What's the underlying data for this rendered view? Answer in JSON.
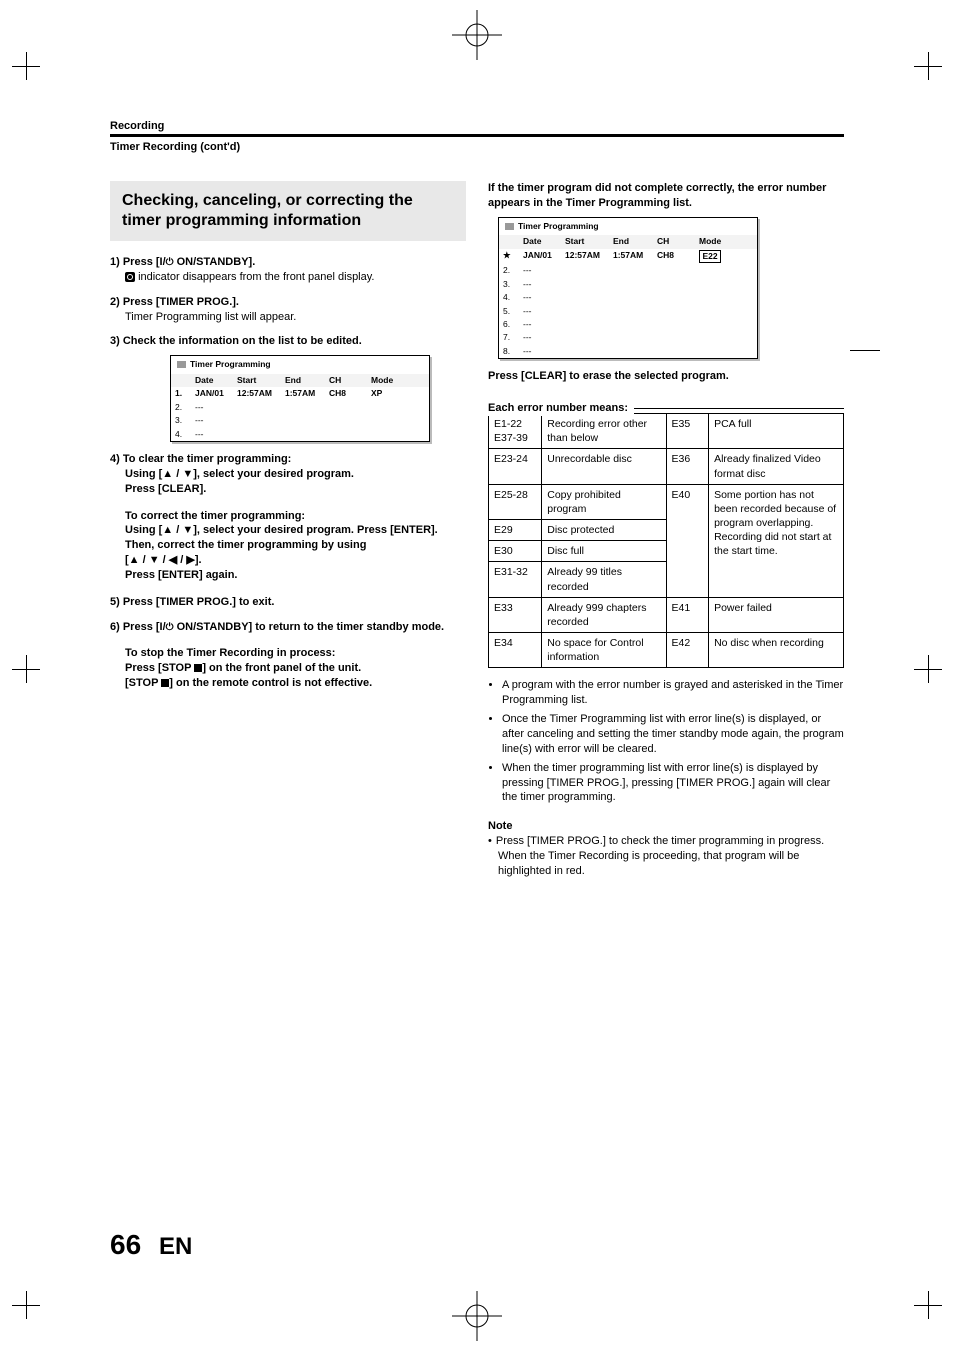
{
  "running_header": "Recording",
  "sub_header": "Timer Recording (cont'd)",
  "title_box": "Checking, canceling, or correcting the timer programming information",
  "steps": {
    "s1_head": "1) Press [I/ ⏻ ON/STANDBY].",
    "s1_body": "indicator disappears from the front panel display.",
    "s2_head": "2) Press [TIMER PROG.].",
    "s2_body": "Timer Programming list will appear.",
    "s3_head": "3) Check the information on the list to be edited.",
    "s4_head": "4) To clear the timer programming:",
    "s4_b1": "Using [▲ / ▼], select your desired program.",
    "s4_b2": "Press [CLEAR].",
    "s4_correct_head": "To correct the timer programming:",
    "s4_c1": "Using [▲ / ▼], select your desired program. Press [ENTER].",
    "s4_c2": "Then, correct the timer programming by using",
    "s4_c3": "[▲ / ▼ / ◀ / ▶].",
    "s4_c4": "Press [ENTER] again.",
    "s5_head": "5) Press [TIMER PROG.] to exit.",
    "s6_head": "6) Press [I/ ⏻ ON/STANDBY] to return to the timer standby mode.",
    "stop_head": "To stop the Timer Recording in process:",
    "stop_b1": "Press [STOP ■] on the front panel of the unit.",
    "stop_b2": "[STOP ■] on the remote control is not effective."
  },
  "timer_table": {
    "title": "Timer Programming",
    "columns": [
      "",
      "Date",
      "Start",
      "End",
      "CH",
      "Mode"
    ],
    "exampleA": {
      "rows": [
        [
          "1.",
          "JAN/01",
          "12:57AM",
          "1:57AM",
          "CH8",
          "XP"
        ],
        [
          "2.",
          "---",
          "",
          "",
          "",
          ""
        ],
        [
          "3.",
          "---",
          "",
          "",
          "",
          ""
        ],
        [
          "4.",
          "---",
          "",
          "",
          "",
          ""
        ]
      ]
    },
    "exampleB": {
      "rows": [
        [
          "★",
          "JAN/01",
          "12:57AM",
          "1:57AM",
          "CH8",
          "E22"
        ],
        [
          "2.",
          "---",
          "",
          "",
          "",
          ""
        ],
        [
          "3.",
          "---",
          "",
          "",
          "",
          ""
        ],
        [
          "4.",
          "---",
          "",
          "",
          "",
          ""
        ],
        [
          "5.",
          "---",
          "",
          "",
          "",
          ""
        ],
        [
          "6.",
          "---",
          "",
          "",
          "",
          ""
        ],
        [
          "7.",
          "---",
          "",
          "",
          "",
          ""
        ],
        [
          "8.",
          "---",
          "",
          "",
          "",
          ""
        ]
      ],
      "highlight_mode": true
    }
  },
  "right_intro": "If the timer program did not complete correctly, the error number appears in the Timer Programming list.",
  "right_after_table": "Press [CLEAR] to erase the selected program.",
  "error_legend": "Each error number means:",
  "error_table": [
    {
      "c1": "E1-22\nE37-39",
      "c1_rowspan": 2,
      "c2": "Recording error other than below",
      "c2_rowspan": 2,
      "c3": "E35",
      "c4": "PCA full"
    },
    {
      "c3": "E36",
      "c4": "Already finalized Video format disc"
    },
    {
      "c1": "E23-24",
      "c2": "Unrecordable disc",
      "c3_in_prev": true
    },
    {
      "c1": "E25-28",
      "c2": "Copy prohibited program",
      "c3": "E40",
      "c3_rowspan": 4,
      "c4": "Some portion has not been recorded because of program overlapping. Recording did not start at the start time.",
      "c4_rowspan": 4
    },
    {
      "c1": "E29",
      "c2": "Disc protected"
    },
    {
      "c1": "E30",
      "c2": "Disc full"
    },
    {
      "c1": "E31-32",
      "c2": "Already 99 titles recorded"
    },
    {
      "c1": "E33",
      "c2": "Already 999 chapters recorded",
      "c3": "E41",
      "c4": "Power failed"
    },
    {
      "c1": "E34",
      "c2": "No space for Control information",
      "c3": "E42",
      "c4": "No disc when recording"
    }
  ],
  "bullets": [
    "A program with the error number is grayed and asterisked in the Timer Programming list.",
    "Once the Timer Programming list with error line(s) is displayed, or after canceling and setting the timer standby mode again, the program line(s) with error will be cleared.",
    "When the timer programming list with error line(s) is displayed by pressing [TIMER PROG.], pressing [TIMER PROG.] again will clear the timer programming."
  ],
  "note_head": "Note",
  "note_items": [
    "Press [TIMER PROG.] to check the timer programming in progress.",
    "When the Timer Recording is proceeding, that program will be highlighted in red."
  ],
  "page_number": "66",
  "page_lang": "EN"
}
